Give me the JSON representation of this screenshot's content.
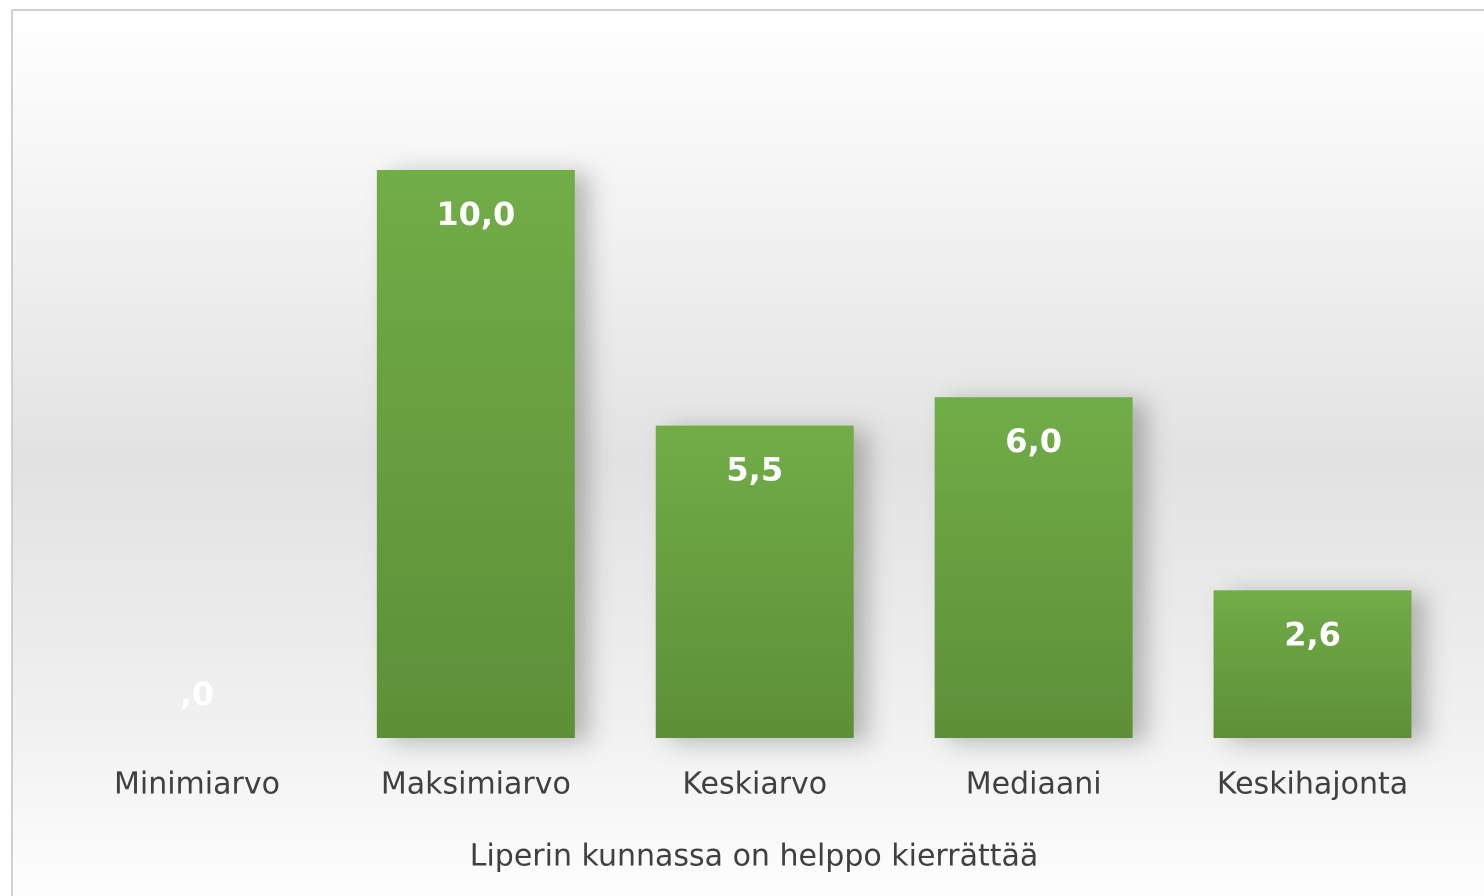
{
  "chart_data": {
    "type": "bar",
    "categories": [
      "Minimiarvo",
      "Maksimiarvo",
      "Keskiarvo",
      "Mediaani",
      "Keskihajonta"
    ],
    "values": [
      0,
      10,
      5.5,
      6,
      2.6
    ],
    "value_labels": [
      ",0",
      "10,0",
      "5,5",
      "6,0",
      "2,6"
    ],
    "color": "#70ad47",
    "x_label": "Liperin kunnassa on helppo kierrättää"
  }
}
